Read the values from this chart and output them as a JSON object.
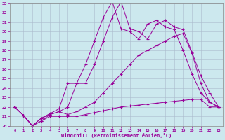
{
  "xlabel": "Windchill (Refroidissement éolien,°C)",
  "bg_color": "#cce8ee",
  "line_color": "#990099",
  "xlim": [
    -0.5,
    23.5
  ],
  "ylim": [
    20,
    33
  ],
  "xticks": [
    0,
    1,
    2,
    3,
    4,
    5,
    6,
    7,
    8,
    9,
    10,
    11,
    12,
    13,
    14,
    15,
    16,
    17,
    18,
    19,
    20,
    21,
    22,
    23
  ],
  "yticks": [
    20,
    21,
    22,
    23,
    24,
    25,
    26,
    27,
    28,
    29,
    30,
    31,
    32,
    33
  ],
  "curve1_x": [
    0,
    1,
    2,
    3,
    4,
    5,
    6,
    7,
    8,
    9,
    10,
    11,
    12,
    13,
    14,
    15,
    16,
    17,
    18,
    19,
    20,
    21,
    22,
    23
  ],
  "curve1_y": [
    22.0,
    21.1,
    20.0,
    20.5,
    21.0,
    21.0,
    21.0,
    21.0,
    21.2,
    21.4,
    21.6,
    21.8,
    22.0,
    22.1,
    22.2,
    22.3,
    22.4,
    22.5,
    22.6,
    22.7,
    22.8,
    22.8,
    22.0,
    22.0
  ],
  "curve2_x": [
    0,
    1,
    2,
    3,
    4,
    5,
    6,
    7,
    8,
    9,
    10,
    11,
    12,
    13,
    14,
    15,
    16,
    17,
    18,
    19,
    20,
    21,
    22,
    23
  ],
  "curve2_y": [
    22.0,
    21.1,
    20.0,
    20.5,
    21.2,
    21.5,
    21.2,
    21.5,
    22.0,
    22.5,
    23.5,
    24.5,
    25.5,
    26.5,
    27.5,
    28.0,
    28.5,
    29.0,
    29.5,
    29.8,
    27.7,
    24.5,
    22.5,
    22.0
  ],
  "curve3_x": [
    0,
    1,
    2,
    3,
    4,
    5,
    6,
    7,
    8,
    9,
    10,
    11,
    12,
    13,
    14,
    15,
    16,
    17,
    18,
    19,
    20,
    21,
    22,
    23
  ],
  "curve3_y": [
    22.0,
    21.1,
    20.0,
    20.8,
    21.3,
    21.8,
    24.5,
    24.5,
    26.5,
    29.0,
    31.5,
    33.2,
    30.3,
    30.0,
    29.2,
    30.8,
    31.2,
    30.5,
    30.2,
    28.0,
    25.5,
    23.5,
    22.5,
    22.0
  ],
  "curve4_x": [
    0,
    1,
    2,
    3,
    4,
    5,
    6,
    7,
    8,
    9,
    10,
    11,
    12,
    13,
    14,
    15,
    16,
    17,
    18,
    19,
    20,
    21,
    22,
    23
  ],
  "curve4_y": [
    22.0,
    21.1,
    20.0,
    20.8,
    21.2,
    21.5,
    22.0,
    24.5,
    24.5,
    26.5,
    29.0,
    31.5,
    33.2,
    30.3,
    30.0,
    29.2,
    30.8,
    31.2,
    30.5,
    30.2,
    27.8,
    25.3,
    23.5,
    22.0
  ]
}
